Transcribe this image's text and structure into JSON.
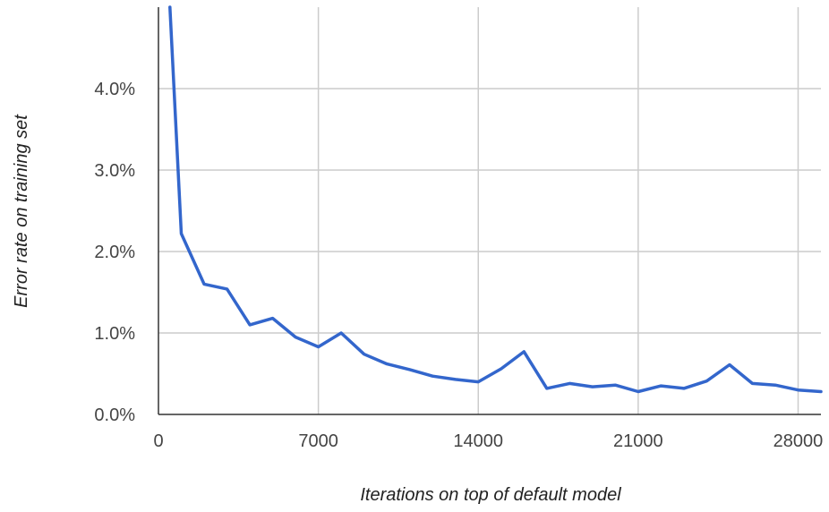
{
  "chart_data": {
    "type": "line",
    "xlabel": "Iterations on top of default model",
    "ylabel": "Error rate on training set",
    "xlim": [
      0,
      29000
    ],
    "ylim": [
      0,
      5.0
    ],
    "x_ticks": [
      0,
      7000,
      14000,
      21000,
      28000
    ],
    "x_tick_labels": [
      "0",
      "7000",
      "14000",
      "21000",
      "28000"
    ],
    "y_ticks": [
      0,
      1,
      2,
      3,
      4
    ],
    "y_tick_labels": [
      "0.0%",
      "1.0%",
      "2.0%",
      "3.0%",
      "4.0%"
    ],
    "grid": true,
    "legend": "none",
    "series": [
      {
        "color": "#3366cc",
        "x": [
          500,
          1000,
          2000,
          3000,
          4000,
          5000,
          6000,
          7000,
          8000,
          9000,
          10000,
          11000,
          12000,
          13000,
          14000,
          15000,
          16000,
          17000,
          18000,
          19000,
          20000,
          21000,
          22000,
          23000,
          24000,
          25000,
          26000,
          27000,
          28000,
          29000
        ],
        "y": [
          5.0,
          2.22,
          1.6,
          1.54,
          1.1,
          1.18,
          0.95,
          0.83,
          1.0,
          0.74,
          0.62,
          0.55,
          0.47,
          0.43,
          0.4,
          0.56,
          0.77,
          0.32,
          0.38,
          0.34,
          0.36,
          0.28,
          0.35,
          0.32,
          0.41,
          0.61,
          0.38,
          0.36,
          0.3,
          0.28
        ]
      }
    ]
  }
}
